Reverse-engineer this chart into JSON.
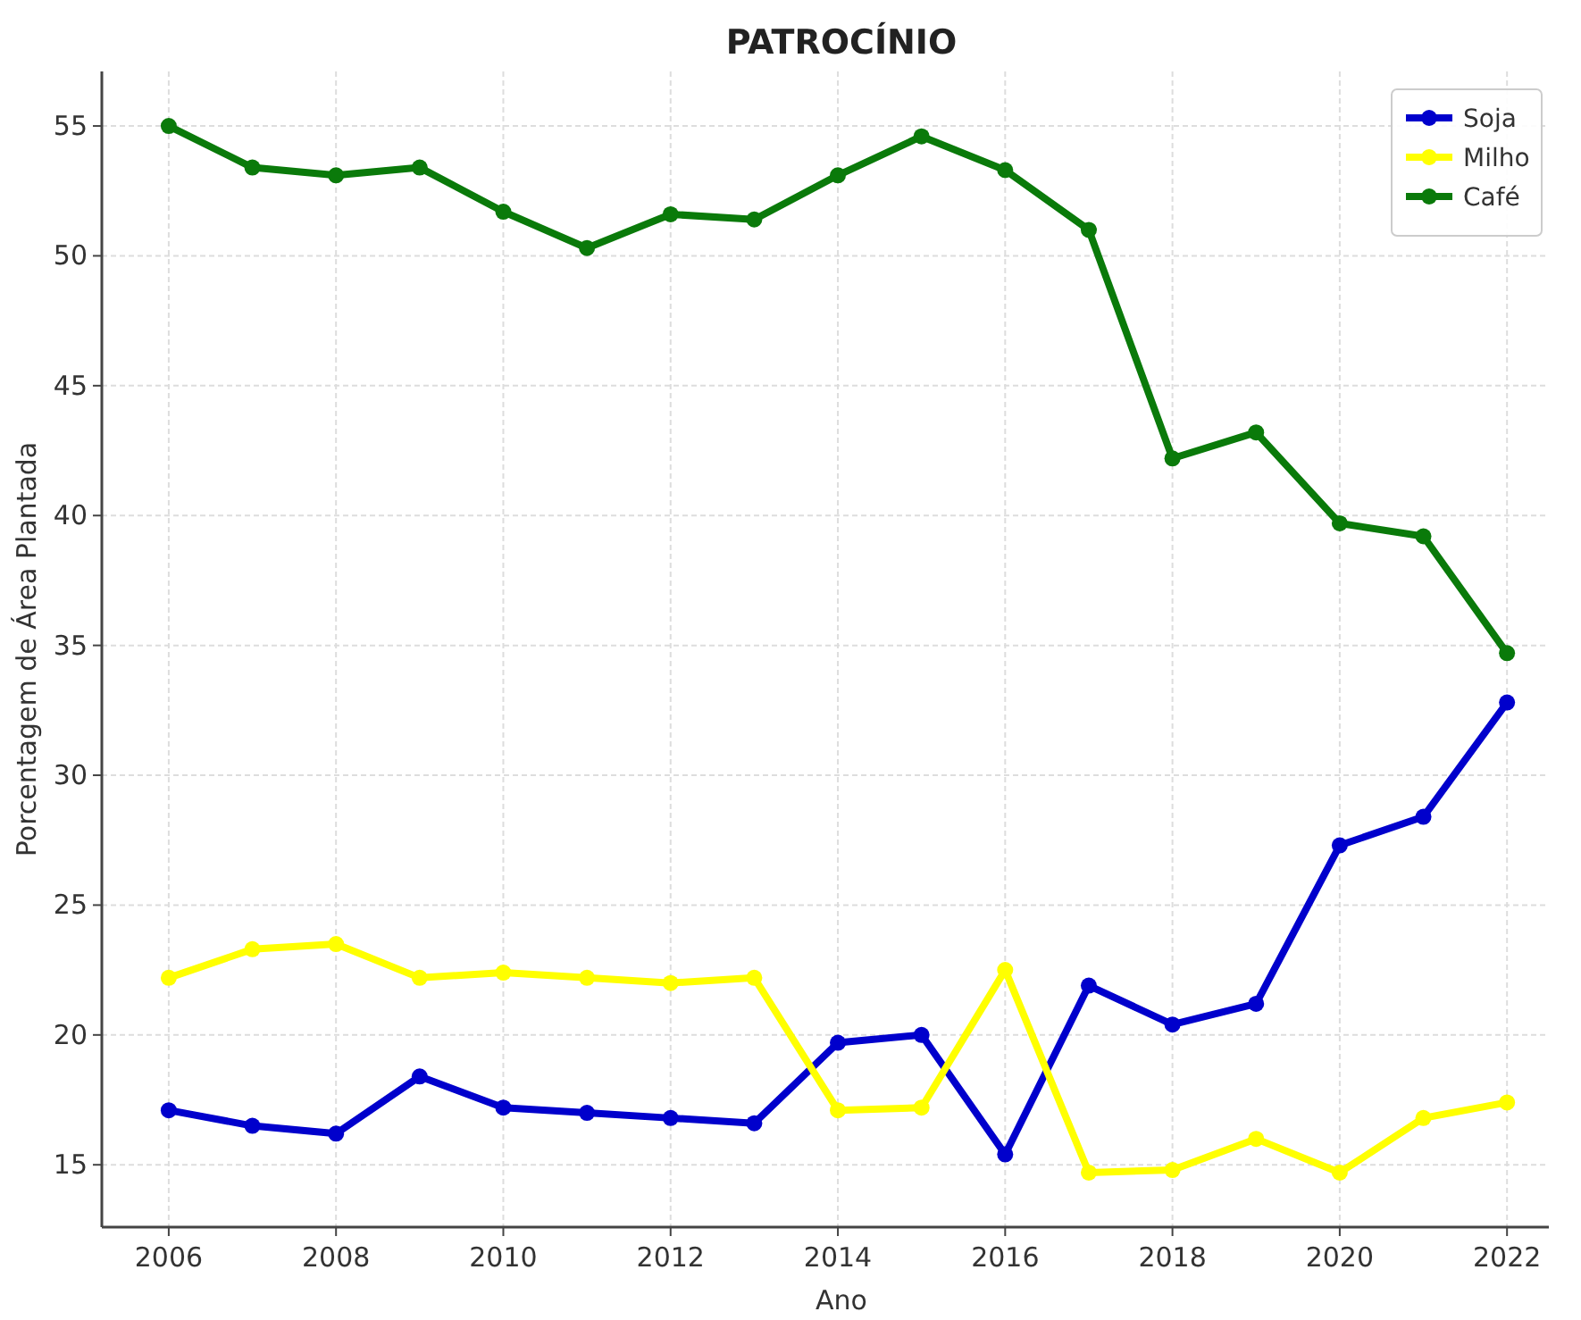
{
  "chart_data": {
    "type": "line",
    "title": "PATROCÍNIO",
    "xlabel": "Ano",
    "ylabel": "Porcentagem de Área Plantada",
    "x": [
      2006,
      2007,
      2008,
      2009,
      2010,
      2011,
      2012,
      2013,
      2014,
      2015,
      2016,
      2017,
      2018,
      2019,
      2020,
      2021,
      2022
    ],
    "series": [
      {
        "name": "Soja",
        "color": "#0000cc",
        "values": [
          17.1,
          16.5,
          16.2,
          18.4,
          17.2,
          17.0,
          16.8,
          16.6,
          19.7,
          20.0,
          15.4,
          21.9,
          20.4,
          21.2,
          27.3,
          28.4,
          32.8
        ]
      },
      {
        "name": "Milho",
        "color": "#ffff00",
        "values": [
          22.2,
          23.3,
          23.5,
          22.2,
          22.4,
          22.2,
          22.0,
          22.2,
          17.1,
          17.2,
          22.5,
          14.7,
          14.8,
          16.0,
          14.7,
          16.8,
          17.4
        ]
      },
      {
        "name": "Café",
        "color": "#0a7a0a",
        "values": [
          55.0,
          53.4,
          53.1,
          53.4,
          51.7,
          50.3,
          51.6,
          51.4,
          53.1,
          54.6,
          53.3,
          51.0,
          42.2,
          43.2,
          39.7,
          39.2,
          34.7
        ]
      }
    ],
    "xlim": [
      2005.2,
      2022.5
    ],
    "xticks": [
      2006,
      2008,
      2010,
      2012,
      2014,
      2016,
      2018,
      2020,
      2022
    ],
    "ylim": [
      12.6,
      57.1
    ],
    "yticks": [
      15,
      20,
      25,
      30,
      35,
      40,
      45,
      50,
      55
    ],
    "grid": true,
    "legend": "top right",
    "marker": "circle",
    "line_style": "solid"
  }
}
